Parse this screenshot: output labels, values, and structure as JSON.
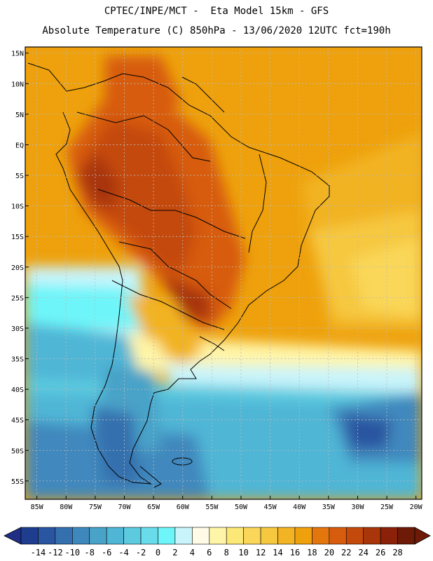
{
  "header": {
    "line1": "CPTEC/INPE/MCT -  Eta Model 15km - GFS",
    "line2": "Absolute Temperature (C) 850hPa - 13/06/2020 12UTC fct=190h"
  },
  "map": {
    "lat_labels": [
      "15N",
      "10N",
      "5N",
      "EQ",
      "5S",
      "10S",
      "15S",
      "20S",
      "25S",
      "30S",
      "35S",
      "40S",
      "45S",
      "50S",
      "55S"
    ],
    "lon_labels": [
      "85W",
      "80W",
      "75W",
      "70W",
      "65W",
      "60W",
      "55W",
      "50W",
      "45W",
      "40W",
      "35W",
      "30W",
      "25W",
      "20W"
    ],
    "extent": {
      "lon_min": -87,
      "lon_max": -19,
      "lat_min": -58,
      "lat_max": 16
    },
    "grid": true
  },
  "colorbar": {
    "labels": [
      "-14",
      "-12",
      "-10",
      "-8",
      "-6",
      "-4",
      "-2",
      "0",
      "2",
      "4",
      "6",
      "8",
      "10",
      "12",
      "14",
      "16",
      "18",
      "20",
      "22",
      "24",
      "26",
      "28"
    ],
    "colors": [
      "#1f3d8f",
      "#2a55a0",
      "#3570ae",
      "#3f88bd",
      "#49a2c8",
      "#4fb6d6",
      "#5ccbe0",
      "#69dcec",
      "#6ef5f9",
      "#c9f4fb",
      "#fffbe6",
      "#fff5a8",
      "#fce877",
      "#fad759",
      "#f6c840",
      "#f2b324",
      "#eea10c",
      "#e4760e",
      "#d75c0e",
      "#c44a0c",
      "#a8360a",
      "#8a2108",
      "#6d1a06"
    ],
    "left_arrow_color": "#1f2f86",
    "right_arrow_color": "#6d1a06"
  },
  "colors": {
    "ocean_warm": "#eea10c",
    "land_hot": "#c44a0c",
    "coast_lines": "#000000"
  }
}
